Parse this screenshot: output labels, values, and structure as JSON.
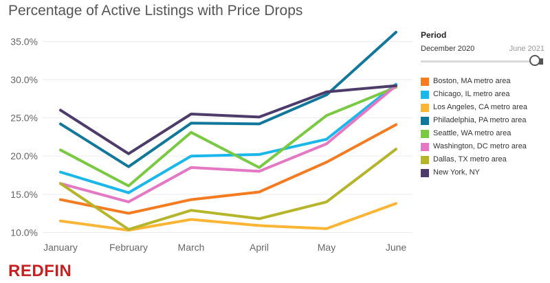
{
  "chart_data": {
    "type": "line",
    "title": "Percentage of Active Listings with Price Drops",
    "xlabel": "",
    "ylabel": "",
    "x": [
      "January",
      "February",
      "March",
      "April",
      "May",
      "June"
    ],
    "ylim": [
      0.095,
      0.37
    ],
    "yticks": [
      "10.0%",
      "15.0%",
      "20.0%",
      "25.0%",
      "30.0%",
      "35.0%"
    ],
    "ytick_values": [
      0.1,
      0.15,
      0.2,
      0.25,
      0.3,
      0.35
    ],
    "grid": true,
    "legend_placement": "right",
    "series": [
      {
        "name": "Boston, MA metro area",
        "color": "#f47b20",
        "values": [
          0.143,
          0.125,
          0.143,
          0.153,
          0.192,
          0.241
        ]
      },
      {
        "name": "Chicago, IL metro area",
        "color": "#1ab7ea",
        "values": [
          0.179,
          0.152,
          0.2,
          0.202,
          0.222,
          0.294
        ]
      },
      {
        "name": "Los Angeles, CA metro area",
        "color": "#fbb534",
        "values": [
          0.115,
          0.103,
          0.117,
          0.109,
          0.105,
          0.138
        ]
      },
      {
        "name": "Philadelphia, PA metro area",
        "color": "#11789c",
        "values": [
          0.242,
          0.186,
          0.243,
          0.242,
          0.28,
          0.362
        ]
      },
      {
        "name": "Seattle, WA metro area",
        "color": "#7ac943",
        "values": [
          0.208,
          0.161,
          0.231,
          0.185,
          0.253,
          0.29
        ]
      },
      {
        "name": "Washington, DC metro area",
        "color": "#e478c4",
        "values": [
          0.164,
          0.14,
          0.185,
          0.18,
          0.216,
          0.292
        ]
      },
      {
        "name": "Dallas, TX metro area",
        "color": "#b5b52c",
        "values": [
          0.164,
          0.104,
          0.129,
          0.118,
          0.14,
          0.209
        ]
      },
      {
        "name": "New York, NY",
        "color": "#4d3b6a",
        "values": [
          0.26,
          0.203,
          0.255,
          0.251,
          0.284,
          0.292
        ]
      }
    ]
  },
  "period_filter": {
    "title": "Period",
    "start": "December 2020",
    "end": "June 2021"
  },
  "branding": {
    "logo_text": "REDFIN",
    "logo_color": "#c82021"
  }
}
